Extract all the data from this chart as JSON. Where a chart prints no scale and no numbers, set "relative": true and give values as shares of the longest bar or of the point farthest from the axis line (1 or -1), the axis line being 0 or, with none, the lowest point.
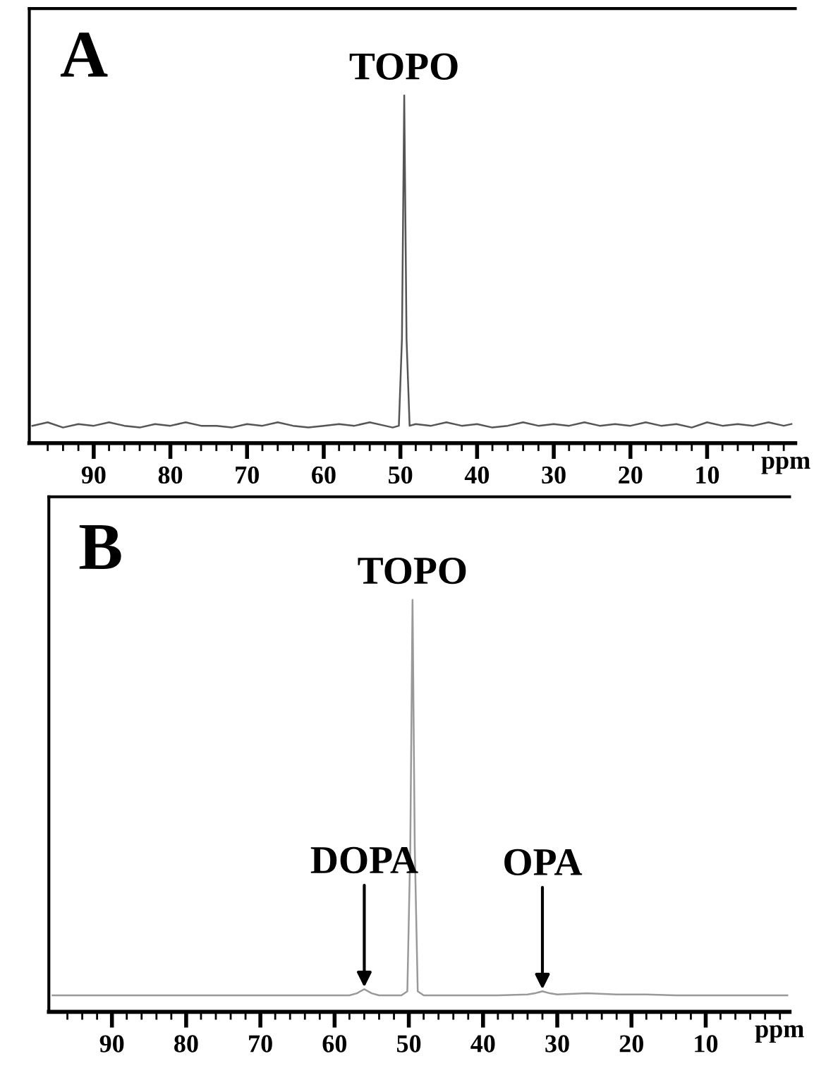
{
  "chart_data": [
    {
      "type": "line",
      "title": "A",
      "xlabel": "ppm",
      "relative": true,
      "tick_labels": "x",
      "xlim": [
        98.4,
        -1.5
      ],
      "xticks": [
        {
          "value": 96,
          "label": null
        },
        {
          "value": 94,
          "label": null
        },
        {
          "value": 92,
          "label": null
        },
        90,
        {
          "value": 88,
          "label": null
        },
        {
          "value": 86,
          "label": null
        },
        {
          "value": 84,
          "label": null
        },
        {
          "value": 82,
          "label": null
        },
        80,
        {
          "value": 78,
          "label": null
        },
        {
          "value": 76,
          "label": null
        },
        {
          "value": 74,
          "label": null
        },
        {
          "value": 72,
          "label": null
        },
        70,
        {
          "value": 68,
          "label": null
        },
        {
          "value": 66,
          "label": null
        },
        {
          "value": 64,
          "label": null
        },
        {
          "value": 62,
          "label": null
        },
        60,
        {
          "value": 58,
          "label": null
        },
        {
          "value": 56,
          "label": null
        },
        {
          "value": 54,
          "label": null
        },
        {
          "value": 52,
          "label": null
        },
        50,
        {
          "value": 48,
          "label": null
        },
        {
          "value": 46,
          "label": null
        },
        {
          "value": 44,
          "label": null
        },
        {
          "value": 42,
          "label": null
        },
        40,
        {
          "value": 38,
          "label": null
        },
        {
          "value": 36,
          "label": null
        },
        {
          "value": 34,
          "label": null
        },
        {
          "value": 32,
          "label": null
        },
        30,
        {
          "value": 28,
          "label": null
        },
        {
          "value": 26,
          "label": null
        },
        {
          "value": 24,
          "label": null
        },
        {
          "value": 22,
          "label": null
        },
        20,
        {
          "value": 18,
          "label": null
        },
        {
          "value": 16,
          "label": null
        },
        {
          "value": 14,
          "label": null
        },
        {
          "value": 12,
          "label": null
        },
        10,
        {
          "value": 8,
          "label": null
        },
        {
          "value": 6,
          "label": null
        },
        {
          "value": 4,
          "label": null
        },
        {
          "value": 2,
          "label": null
        },
        {
          "value": 0,
          "label": null
        }
      ],
      "annotations": [
        {
          "text": "TOPO",
          "x": 49.5,
          "y": 1
        }
      ],
      "series": [
        {
          "color": "#555555",
          "x": [
            98,
            96,
            94,
            92,
            90,
            88,
            86,
            84,
            82,
            80,
            78,
            76,
            74,
            72,
            70,
            68,
            66,
            64,
            62,
            60,
            58,
            56,
            54,
            52,
            51,
            50.2,
            49.8,
            49.5,
            49.2,
            48.8,
            48,
            46,
            44,
            42,
            40,
            38,
            36,
            34,
            32,
            30,
            28,
            26,
            24,
            22,
            20,
            18,
            16,
            14,
            12,
            10,
            8,
            6,
            4,
            2,
            0,
            -1
          ],
          "values": [
            0.05,
            0.06,
            0.045,
            0.055,
            0.05,
            0.06,
            0.05,
            0.045,
            0.055,
            0.05,
            0.06,
            0.05,
            0.05,
            0.045,
            0.055,
            0.05,
            0.06,
            0.05,
            0.045,
            0.05,
            0.055,
            0.05,
            0.06,
            0.05,
            0.045,
            0.05,
            0.3,
            1,
            0.3,
            0.05,
            0.055,
            0.05,
            0.06,
            0.05,
            0.055,
            0.045,
            0.05,
            0.06,
            0.05,
            0.055,
            0.05,
            0.06,
            0.05,
            0.055,
            0.05,
            0.06,
            0.05,
            0.055,
            0.045,
            0.06,
            0.05,
            0.055,
            0.05,
            0.06,
            0.05,
            0.055
          ]
        }
      ]
    },
    {
      "type": "line",
      "title": "B",
      "xlabel": "ppm",
      "relative": true,
      "tick_labels": "x",
      "xlim": [
        98.5,
        -1.3
      ],
      "xticks": [
        {
          "value": 96,
          "label": null
        },
        {
          "value": 94,
          "label": null
        },
        {
          "value": 92,
          "label": null
        },
        90,
        {
          "value": 88,
          "label": null
        },
        {
          "value": 86,
          "label": null
        },
        {
          "value": 84,
          "label": null
        },
        {
          "value": 82,
          "label": null
        },
        80,
        {
          "value": 78,
          "label": null
        },
        {
          "value": 76,
          "label": null
        },
        {
          "value": 74,
          "label": null
        },
        {
          "value": 72,
          "label": null
        },
        70,
        {
          "value": 68,
          "label": null
        },
        {
          "value": 66,
          "label": null
        },
        {
          "value": 64,
          "label": null
        },
        {
          "value": 62,
          "label": null
        },
        60,
        {
          "value": 58,
          "label": null
        },
        {
          "value": 56,
          "label": null
        },
        {
          "value": 54,
          "label": null
        },
        {
          "value": 52,
          "label": null
        },
        50,
        {
          "value": 48,
          "label": null
        },
        {
          "value": 46,
          "label": null
        },
        {
          "value": 44,
          "label": null
        },
        {
          "value": 42,
          "label": null
        },
        40,
        {
          "value": 38,
          "label": null
        },
        {
          "value": 36,
          "label": null
        },
        {
          "value": 34,
          "label": null
        },
        {
          "value": 32,
          "label": null
        },
        30,
        {
          "value": 28,
          "label": null
        },
        {
          "value": 26,
          "label": null
        },
        {
          "value": 24,
          "label": null
        },
        {
          "value": 22,
          "label": null
        },
        20,
        {
          "value": 18,
          "label": null
        },
        {
          "value": 16,
          "label": null
        },
        {
          "value": 14,
          "label": null
        },
        {
          "value": 12,
          "label": null
        },
        10,
        {
          "value": 8,
          "label": null
        },
        {
          "value": 6,
          "label": null
        },
        {
          "value": 4,
          "label": null
        },
        {
          "value": 2,
          "label": null
        },
        {
          "value": 0,
          "label": null
        }
      ],
      "annotations": [
        {
          "text": "TOPO",
          "x": 49.5,
          "y": 1
        },
        {
          "text": "DOPA",
          "x": 56,
          "y": 0.055
        },
        {
          "text": "OPA",
          "x": 32,
          "y": 0.05
        }
      ],
      "series": [
        {
          "color": "#999999",
          "x": [
            98,
            94,
            90,
            86,
            82,
            78,
            74,
            70,
            66,
            62,
            58,
            57,
            56,
            55,
            54,
            52,
            51,
            50.2,
            49.8,
            49.5,
            49.2,
            48.8,
            48,
            46,
            42,
            38,
            34,
            33,
            32,
            31,
            30,
            26,
            22,
            18,
            14,
            10,
            6,
            2,
            0,
            -1
          ],
          "values": [
            0.04,
            0.04,
            0.04,
            0.04,
            0.04,
            0.04,
            0.04,
            0.04,
            0.04,
            0.04,
            0.04,
            0.045,
            0.055,
            0.045,
            0.04,
            0.04,
            0.04,
            0.05,
            0.4,
            1,
            0.4,
            0.05,
            0.04,
            0.04,
            0.04,
            0.04,
            0.042,
            0.045,
            0.05,
            0.045,
            0.042,
            0.045,
            0.042,
            0.042,
            0.04,
            0.04,
            0.04,
            0.04,
            0.04,
            0.04
          ]
        }
      ]
    }
  ]
}
